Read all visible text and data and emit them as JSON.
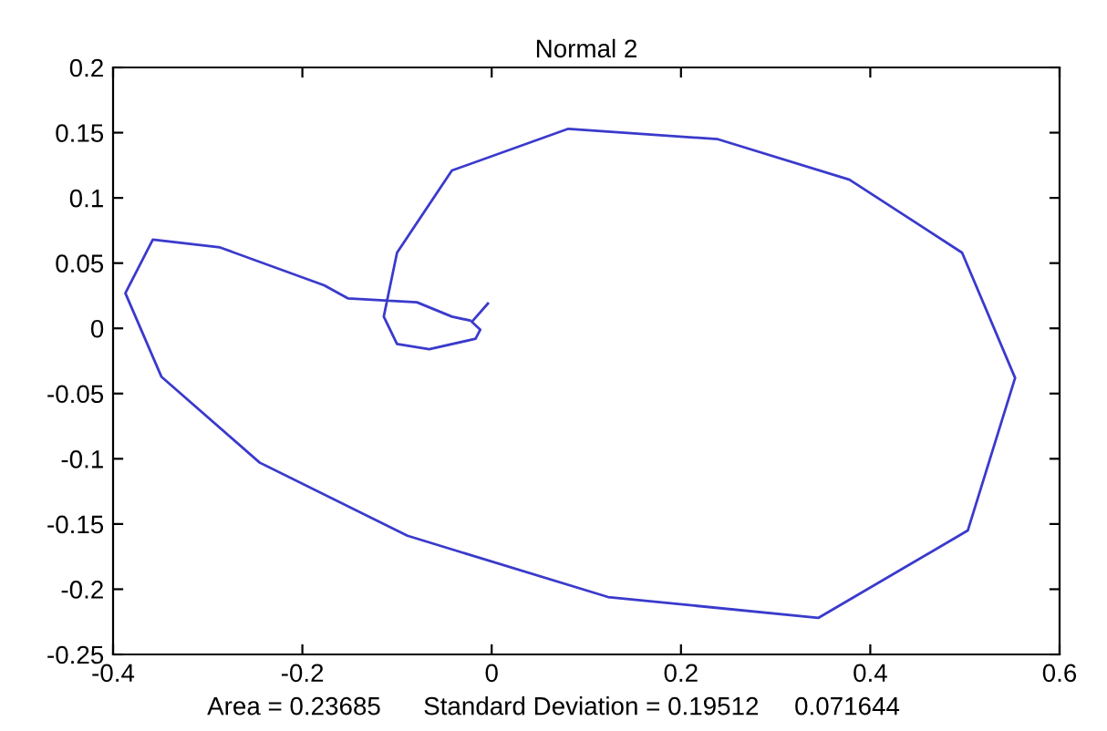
{
  "chart_data": {
    "type": "line",
    "title": "Normal 2",
    "x": [
      -0.004,
      -0.021,
      -0.012,
      -0.017,
      -0.066,
      -0.1,
      -0.114,
      -0.1,
      -0.042,
      0.081,
      0.239,
      0.378,
      0.497,
      0.553,
      0.503,
      0.345,
      0.123,
      -0.089,
      -0.245,
      -0.349,
      -0.387,
      -0.358,
      -0.287,
      -0.177,
      -0.152,
      -0.079,
      -0.042,
      -0.023
    ],
    "series": [
      {
        "color": "#3a3acc",
        "values": [
          0.019,
          0.005,
          -0.001,
          -0.008,
          -0.016,
          -0.012,
          0.009,
          0.058,
          0.121,
          0.153,
          0.145,
          0.114,
          0.058,
          -0.038,
          -0.155,
          -0.222,
          -0.206,
          -0.159,
          -0.103,
          -0.037,
          0.027,
          0.068,
          0.062,
          0.033,
          0.023,
          0.02,
          0.009,
          0.006
        ]
      }
    ],
    "xlim": [
      -0.4,
      0.6
    ],
    "xticks": [
      -0.4,
      -0.2,
      0,
      0.2,
      0.4,
      0.6
    ],
    "ylim": [
      -0.25,
      0.2
    ],
    "yticks": [
      -0.25,
      -0.2,
      -0.15,
      -0.1,
      -0.05,
      0,
      0.05,
      0.1,
      0.15,
      0.2
    ],
    "grid": false,
    "marker": "none",
    "line_style": "solid",
    "annotations": [
      "Area = 0.23685      Standard Deviation = 0.19512     0.071644"
    ]
  }
}
